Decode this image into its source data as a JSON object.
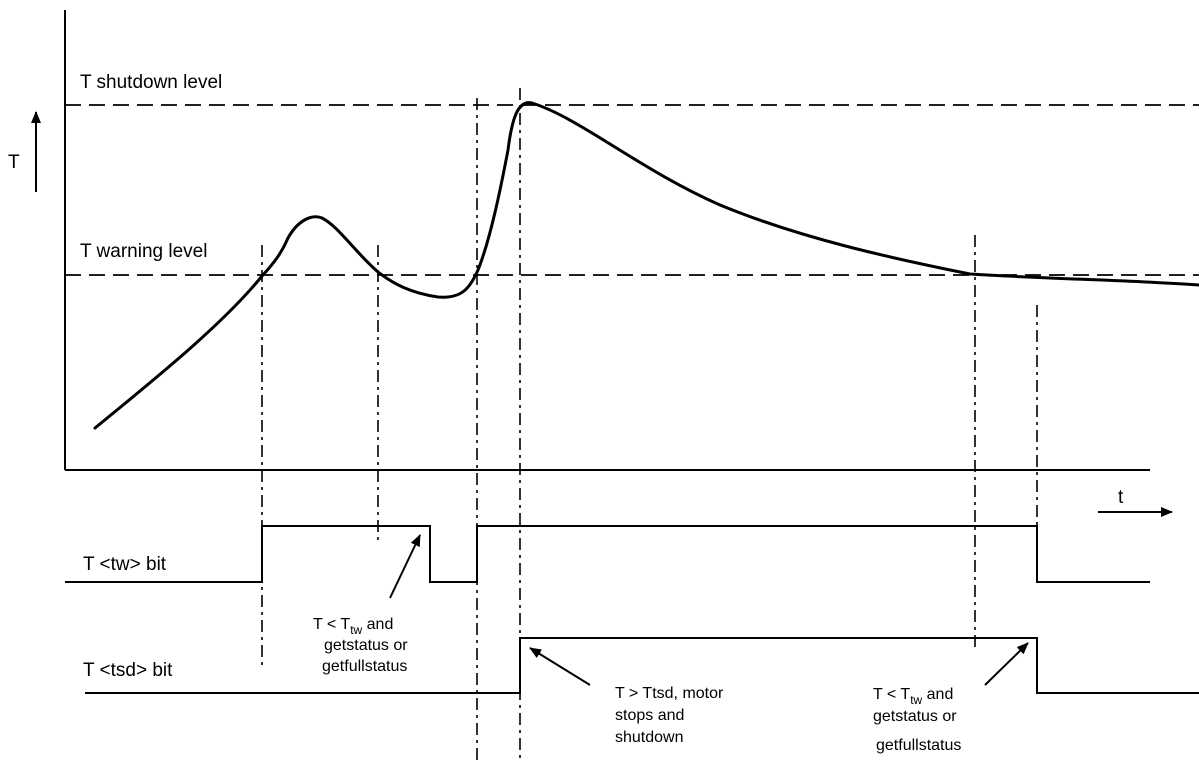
{
  "axes": {
    "y_label": "T",
    "x_label": "t"
  },
  "levels": {
    "shutdown": "T shutdown level",
    "warning": "T warning level"
  },
  "signals": {
    "tw_bit": "T <tw> bit",
    "tsd_bit": "T <tsd> bit"
  },
  "annotations": {
    "tw_clear_1": {
      "line1_prefix": "T < T",
      "line1_sub": "tw",
      "line1_suffix": " and",
      "line2": "getstatus or",
      "line3": "getfullstatus"
    },
    "tsd_set": {
      "line1": "T > Ttsd, motor",
      "line2": "stops and",
      "line3": "shutdown"
    },
    "tw_clear_2": {
      "line1_prefix": "T < T",
      "line1_sub": "tw",
      "line1_suffix": " and",
      "line2": "getstatus or",
      "line3": "getfullstatus"
    }
  }
}
